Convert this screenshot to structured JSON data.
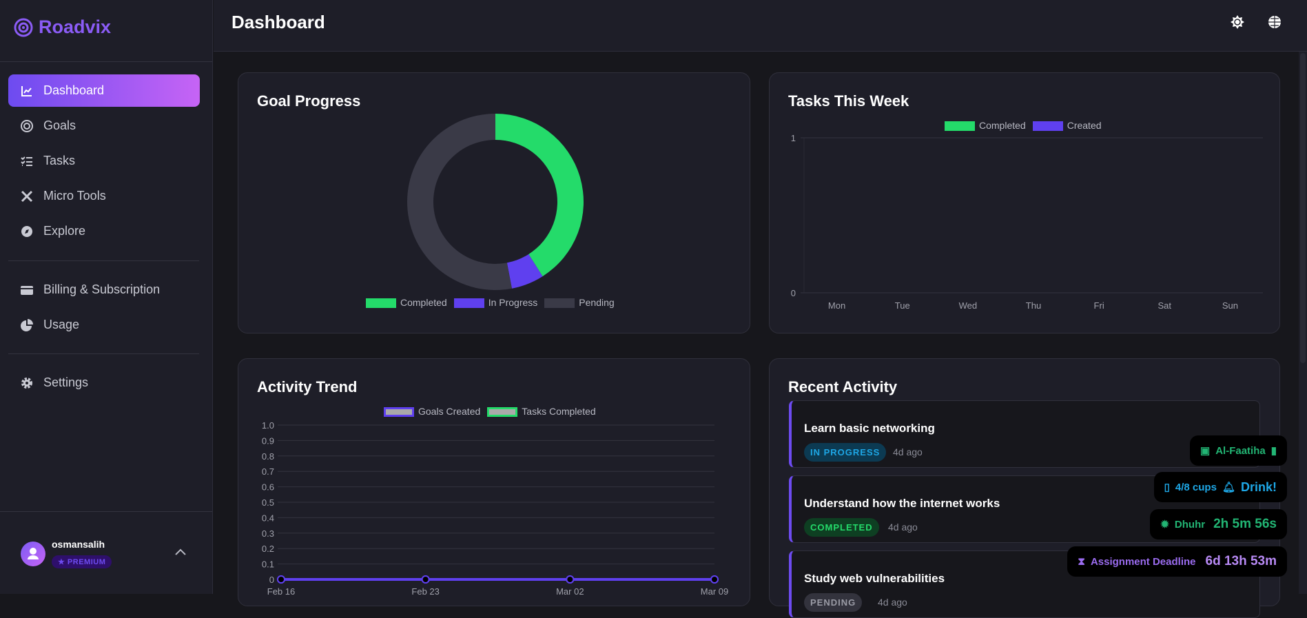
{
  "app": {
    "name": "Roadvix"
  },
  "sidebar": {
    "items": [
      {
        "label": "Dashboard",
        "icon": "chart-line-icon",
        "active": true
      },
      {
        "label": "Goals",
        "icon": "target-icon"
      },
      {
        "label": "Tasks",
        "icon": "task-list-icon"
      },
      {
        "label": "Micro Tools",
        "icon": "tools-icon"
      },
      {
        "label": "Explore",
        "icon": "compass-icon"
      },
      {
        "label": "Billing & Subscription",
        "icon": "credit-card-icon"
      },
      {
        "label": "Usage",
        "icon": "pie-chart-icon"
      },
      {
        "label": "Settings",
        "icon": "gear-icon"
      }
    ],
    "user": {
      "name": "osmansalih",
      "plan": "PREMIUM"
    }
  },
  "header": {
    "title": "Dashboard",
    "icons": [
      "theme-sun-icon",
      "globe-icon"
    ]
  },
  "colors": {
    "accent": "#6d4bf0",
    "green": "#24db6a",
    "purple": "#5f40ef",
    "pending": "#3a3a47"
  },
  "chart_data": [
    {
      "type": "pie",
      "title": "Goal Progress",
      "donut": true,
      "categories": [
        "Completed",
        "In Progress",
        "Pending"
      ],
      "values": [
        41,
        6,
        53
      ],
      "colors": [
        "#24db6a",
        "#5f40ef",
        "#3a3a47"
      ],
      "legend": "bottom"
    },
    {
      "type": "bar",
      "title": "Tasks This Week",
      "categories": [
        "Mon",
        "Tue",
        "Wed",
        "Thu",
        "Fri",
        "Sat",
        "Sun"
      ],
      "series": [
        {
          "name": "Completed",
          "values": [
            0,
            0,
            0,
            0,
            0,
            0,
            0
          ]
        },
        {
          "name": "Created",
          "values": [
            0,
            0,
            0,
            0,
            0,
            0,
            0
          ]
        }
      ],
      "ylim": [
        0,
        1
      ],
      "yticks": [
        "1",
        "0"
      ],
      "legend": "top",
      "grid": true
    },
    {
      "type": "line",
      "title": "Activity Trend",
      "categories": [
        "Feb 16",
        "Feb 23",
        "Mar 02",
        "Mar 09"
      ],
      "series": [
        {
          "name": "Goals Created",
          "values": [
            0,
            0,
            0,
            0
          ]
        },
        {
          "name": "Tasks Completed",
          "values": [
            0,
            0,
            0,
            0
          ]
        }
      ],
      "ylim": [
        0,
        1
      ],
      "yticks": [
        "1.0",
        "0.9",
        "0.8",
        "0.7",
        "0.6",
        "0.5",
        "0.4",
        "0.3",
        "0.2",
        "0.1",
        "0"
      ],
      "legend": "top",
      "grid": true
    }
  ],
  "recent": {
    "title": "Recent Activity",
    "items": [
      {
        "title": "Learn basic networking",
        "status": "IN PROGRESS",
        "ago": "4d ago"
      },
      {
        "title": "Understand how the internet works",
        "status": "COMPLETED",
        "ago": "4d ago"
      },
      {
        "title": "Study web vulnerabilities",
        "status": "PENDING",
        "ago": "4d ago"
      }
    ]
  },
  "widgets": {
    "quran": {
      "label": "Al-Faatiha"
    },
    "water": {
      "cups": "4/8 cups",
      "action": "Drink!"
    },
    "prayer": {
      "name": "Dhuhr",
      "countdown": "2h 5m 56s"
    },
    "deadline": {
      "label": "Assignment Deadline",
      "countdown": "6d 13h 53m"
    }
  }
}
